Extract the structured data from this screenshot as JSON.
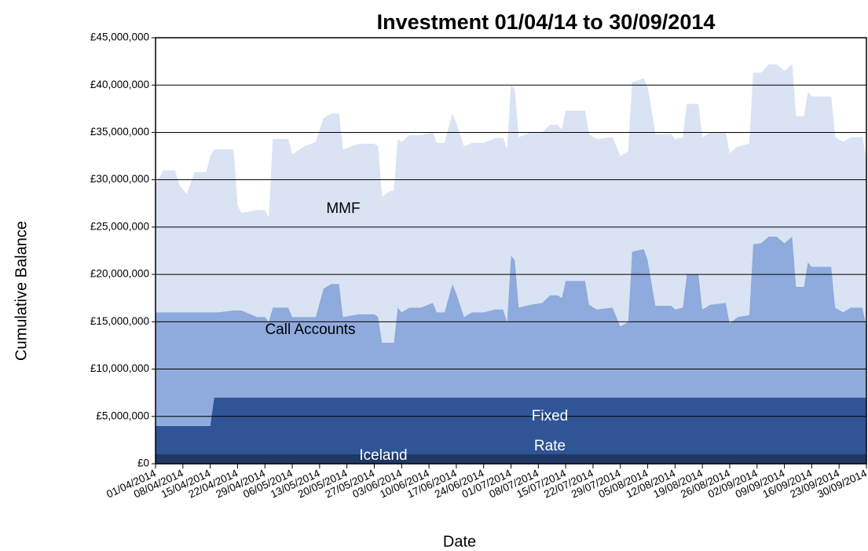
{
  "chart_data": {
    "type": "stacked_area",
    "title": "Investment 01/04/14 to 30/09/2014",
    "x_label": "Date",
    "y_label": "Cumulative Balance",
    "x": [
      "01/04/2014",
      "03/04/2014",
      "06/04/2014",
      "07/04/2014",
      "09/04/2014",
      "11/04/2014",
      "14/04/2014",
      "15/04/2014",
      "16/04/2014",
      "17/04/2014",
      "21/04/2014",
      "22/04/2014",
      "23/04/2014",
      "27/04/2014",
      "29/04/2014",
      "30/04/2014",
      "01/05/2014",
      "05/05/2014",
      "06/05/2014",
      "09/05/2014",
      "12/05/2014",
      "14/05/2014",
      "16/05/2014",
      "18/05/2014",
      "19/05/2014",
      "23/05/2014",
      "27/05/2014",
      "28/05/2014",
      "29/05/2014",
      "31/05/2014",
      "01/06/2014",
      "02/06/2014",
      "03/06/2014",
      "05/06/2014",
      "08/06/2014",
      "11/06/2014",
      "12/06/2014",
      "14/06/2014",
      "16/06/2014",
      "17/06/2014",
      "19/06/2014",
      "21/06/2014",
      "24/06/2014",
      "27/06/2014",
      "29/06/2014",
      "30/06/2014",
      "01/07/2014",
      "02/07/2014",
      "03/07/2014",
      "06/07/2014",
      "09/07/2014",
      "11/07/2014",
      "13/07/2014",
      "14/07/2014",
      "15/07/2014",
      "20/07/2014",
      "21/07/2014",
      "23/07/2014",
      "27/07/2014",
      "29/07/2014",
      "31/07/2014",
      "01/08/2014",
      "04/08/2014",
      "05/08/2014",
      "07/08/2014",
      "11/08/2014",
      "12/08/2014",
      "14/08/2014",
      "15/08/2014",
      "18/08/2014",
      "19/08/2014",
      "21/08/2014",
      "25/08/2014",
      "26/08/2014",
      "28/08/2014",
      "31/08/2014",
      "01/09/2014",
      "03/09/2014",
      "05/09/2014",
      "07/09/2014",
      "09/09/2014",
      "11/09/2014",
      "12/09/2014",
      "14/09/2014",
      "15/09/2014",
      "16/09/2014",
      "21/09/2014",
      "22/09/2014",
      "24/09/2014",
      "26/09/2014",
      "29/09/2014",
      "30/09/2014"
    ],
    "xlim": [
      "01/04/2014",
      "30/09/2014"
    ],
    "xticks": [
      "01/04/2014",
      "08/04/2014",
      "15/04/2014",
      "22/04/2014",
      "29/04/2014",
      "06/05/2014",
      "13/05/2014",
      "20/05/2014",
      "27/05/2014",
      "03/06/2014",
      "10/06/2014",
      "17/06/2014",
      "24/06/2014",
      "01/07/2014",
      "08/07/2014",
      "15/07/2014",
      "22/07/2014",
      "29/07/2014",
      "05/08/2014",
      "12/08/2014",
      "19/08/2014",
      "26/08/2014",
      "02/09/2014",
      "09/09/2014",
      "16/09/2014",
      "23/09/2014",
      "30/09/2014"
    ],
    "ylim": [
      0,
      45000000
    ],
    "yticks": [
      {
        "value": 0,
        "label": "£0"
      },
      {
        "value": 5000000,
        "label": "£5,000,000"
      },
      {
        "value": 10000000,
        "label": "£10,000,000"
      },
      {
        "value": 15000000,
        "label": "£15,000,000"
      },
      {
        "value": 20000000,
        "label": "£20,000,000"
      },
      {
        "value": 25000000,
        "label": "£25,000,000"
      },
      {
        "value": 30000000,
        "label": "£30,000,000"
      },
      {
        "value": 35000000,
        "label": "£35,000,000"
      },
      {
        "value": 40000000,
        "label": "£40,000,000"
      },
      {
        "value": 45000000,
        "label": "£45,000,000"
      }
    ],
    "grid": true,
    "series": [
      {
        "name": "Iceland",
        "color": "#1f3864",
        "values": [
          1000000,
          1000000,
          1000000,
          1000000,
          1000000,
          1000000,
          1000000,
          1000000,
          1000000,
          1000000,
          1000000,
          1000000,
          1000000,
          1000000,
          1000000,
          1000000,
          1000000,
          1000000,
          1000000,
          1000000,
          1000000,
          1000000,
          1000000,
          1000000,
          1000000,
          1000000,
          1000000,
          1000000,
          1000000,
          1000000,
          1000000,
          1000000,
          1000000,
          1000000,
          1000000,
          1000000,
          1000000,
          1000000,
          1000000,
          1000000,
          1000000,
          1000000,
          1000000,
          1000000,
          1000000,
          1000000,
          1000000,
          1000000,
          1000000,
          1000000,
          1000000,
          1000000,
          1000000,
          1000000,
          1000000,
          1000000,
          1000000,
          1000000,
          1000000,
          1000000,
          1000000,
          1000000,
          1000000,
          1000000,
          1000000,
          1000000,
          1000000,
          1000000,
          1000000,
          1000000,
          1000000,
          1000000,
          1000000,
          1000000,
          1000000,
          1000000,
          1000000,
          1000000,
          1000000,
          1000000,
          1000000,
          1000000,
          1000000,
          1000000,
          1000000,
          1000000,
          1000000,
          1000000,
          1000000,
          1000000,
          1000000,
          1000000
        ]
      },
      {
        "name": "Fixed Rate",
        "color": "#2f5597",
        "values": [
          3000000,
          3000000,
          3000000,
          3000000,
          3000000,
          3000000,
          3000000,
          3000000,
          6000000,
          6000000,
          6000000,
          6000000,
          6000000,
          6000000,
          6000000,
          6000000,
          6000000,
          6000000,
          6000000,
          6000000,
          6000000,
          6000000,
          6000000,
          6000000,
          6000000,
          6000000,
          6000000,
          6000000,
          6000000,
          6000000,
          6000000,
          6000000,
          6000000,
          6000000,
          6000000,
          6000000,
          6000000,
          6000000,
          6000000,
          6000000,
          6000000,
          6000000,
          6000000,
          6000000,
          6000000,
          6000000,
          6000000,
          6000000,
          6000000,
          6000000,
          6000000,
          6000000,
          6000000,
          6000000,
          6000000,
          6000000,
          6000000,
          6000000,
          6000000,
          6000000,
          6000000,
          6000000,
          6000000,
          6000000,
          6000000,
          6000000,
          6000000,
          6000000,
          6000000,
          6000000,
          6000000,
          6000000,
          6000000,
          6000000,
          6000000,
          6000000,
          6000000,
          6000000,
          6000000,
          6000000,
          6000000,
          6000000,
          6000000,
          6000000,
          6000000,
          6000000,
          6000000,
          6000000,
          6000000,
          6000000,
          6000000,
          6000000
        ]
      },
      {
        "name": "Call Accounts",
        "color": "#8faadc",
        "values": [
          12000000,
          12000000,
          12000000,
          12000000,
          12000000,
          12000000,
          12000000,
          12000000,
          9000000,
          9000000,
          9200000,
          9200000,
          9200000,
          8500000,
          8500000,
          8000000,
          9500000,
          9500000,
          8500000,
          8500000,
          8500000,
          11500000,
          12000000,
          12000000,
          8500000,
          8800000,
          8800000,
          8500000,
          5800000,
          5800000,
          5800000,
          9500000,
          9000000,
          9500000,
          9500000,
          10000000,
          9000000,
          9000000,
          12000000,
          11000000,
          8500000,
          9000000,
          9000000,
          9300000,
          9300000,
          8000000,
          15000000,
          14500000,
          9500000,
          9800000,
          10000000,
          10800000,
          10800000,
          10500000,
          12300000,
          12300000,
          9800000,
          9300000,
          9500000,
          7500000,
          8000000,
          15400000,
          15700000,
          14500000,
          9700000,
          9700000,
          9300000,
          9500000,
          13000000,
          13000000,
          9300000,
          9800000,
          10000000,
          7800000,
          8500000,
          8700000,
          16200000,
          16300000,
          17000000,
          17000000,
          16300000,
          17000000,
          11700000,
          11700000,
          14300000,
          13800000,
          13800000,
          9500000,
          9000000,
          9500000,
          9500000,
          7500000
        ]
      },
      {
        "name": "MMF",
        "color": "#dae3f3",
        "values": [
          13500000,
          15000000,
          15000000,
          13500000,
          12500000,
          14800000,
          14800000,
          16500000,
          17200000,
          17200000,
          17000000,
          11100000,
          10300000,
          11300000,
          11300000,
          11000000,
          17800000,
          17800000,
          17200000,
          18000000,
          18500000,
          18000000,
          18000000,
          18000000,
          17700000,
          18000000,
          18000000,
          18000000,
          15400000,
          16000000,
          16000000,
          17800000,
          18000000,
          18200000,
          18200000,
          18000000,
          17900000,
          17900000,
          18000000,
          18000000,
          18000000,
          17900000,
          17900000,
          18100000,
          18100000,
          18200000,
          18000000,
          18000000,
          18000000,
          18200000,
          18000000,
          18000000,
          18000000,
          17800000,
          18000000,
          18000000,
          18000000,
          18000000,
          18000000,
          18000000,
          18000000,
          17900000,
          18000000,
          18300000,
          18100000,
          18100000,
          18000000,
          18000000,
          18000000,
          18000000,
          18200000,
          18200000,
          18000000,
          18000000,
          18000000,
          18100000,
          18100000,
          18000000,
          18200000,
          18200000,
          18200000,
          18200000,
          18000000,
          18000000,
          18000000,
          18000000,
          18000000,
          18000000,
          18000000,
          18000000,
          18000000,
          17700000
        ]
      }
    ]
  }
}
